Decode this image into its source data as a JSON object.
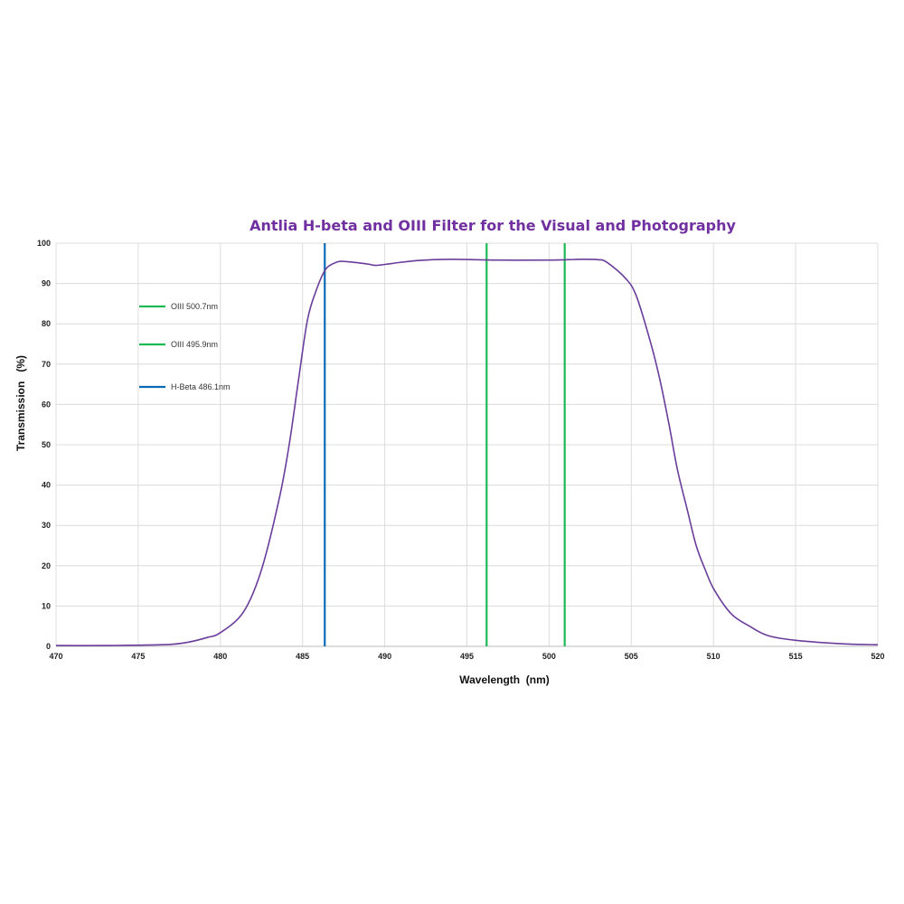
{
  "chart_data": {
    "type": "line",
    "title": "Antlia H-beta and OIII Filter for the Visual and Photography",
    "xlabel": "Wavelength  (nm)",
    "ylabel": "Transmission   (%)",
    "xlim": [
      470,
      520
    ],
    "ylim": [
      0,
      100
    ],
    "x_ticks": [
      470,
      475,
      480,
      485,
      490,
      495,
      500,
      505,
      510,
      515,
      520
    ],
    "y_ticks": [
      0,
      10,
      20,
      30,
      40,
      50,
      60,
      70,
      80,
      90,
      100
    ],
    "grid": true,
    "series": [
      {
        "color": "#6a3d9a",
        "x": [
          470,
          473,
          475,
          477,
          478,
          479.2,
          480,
          481.4,
          482.5,
          483.6,
          484.2,
          484.75,
          485.3,
          485.85,
          486.4,
          486.9,
          487.3,
          488,
          489,
          489.5,
          490.5,
          492,
          494,
          497,
          500,
          502,
          503,
          503.5,
          504.6,
          505.3,
          506.2,
          506.75,
          507.3,
          507.8,
          508.4,
          508.95,
          509.5,
          510.05,
          511.1,
          512.2,
          513.3,
          515,
          518,
          520
        ],
        "y": [
          0.2,
          0.2,
          0.3,
          0.5,
          1.0,
          2.2,
          3.4,
          8.5,
          19,
          37,
          50.4,
          66,
          81,
          88.5,
          93.5,
          95,
          95.5,
          95.3,
          94.8,
          94.5,
          95,
          95.7,
          96,
          95.8,
          95.8,
          96,
          95.9,
          95.3,
          91.5,
          87,
          75,
          66,
          55,
          44,
          34,
          25,
          19,
          14,
          8,
          5,
          2.7,
          1.5,
          0.6,
          0.4
        ]
      }
    ],
    "reference_lines": [
      {
        "label": "OIII 500.7nm",
        "x": 500.95,
        "color": "#1db954"
      },
      {
        "label": "OIII 495.9nm",
        "x": 496.2,
        "color": "#1db954"
      },
      {
        "label": "H-Beta 486.1nm",
        "x": 486.35,
        "color": "#0a6ab6"
      }
    ],
    "legend_position": "top-left",
    "title_color": "#7030a0"
  }
}
